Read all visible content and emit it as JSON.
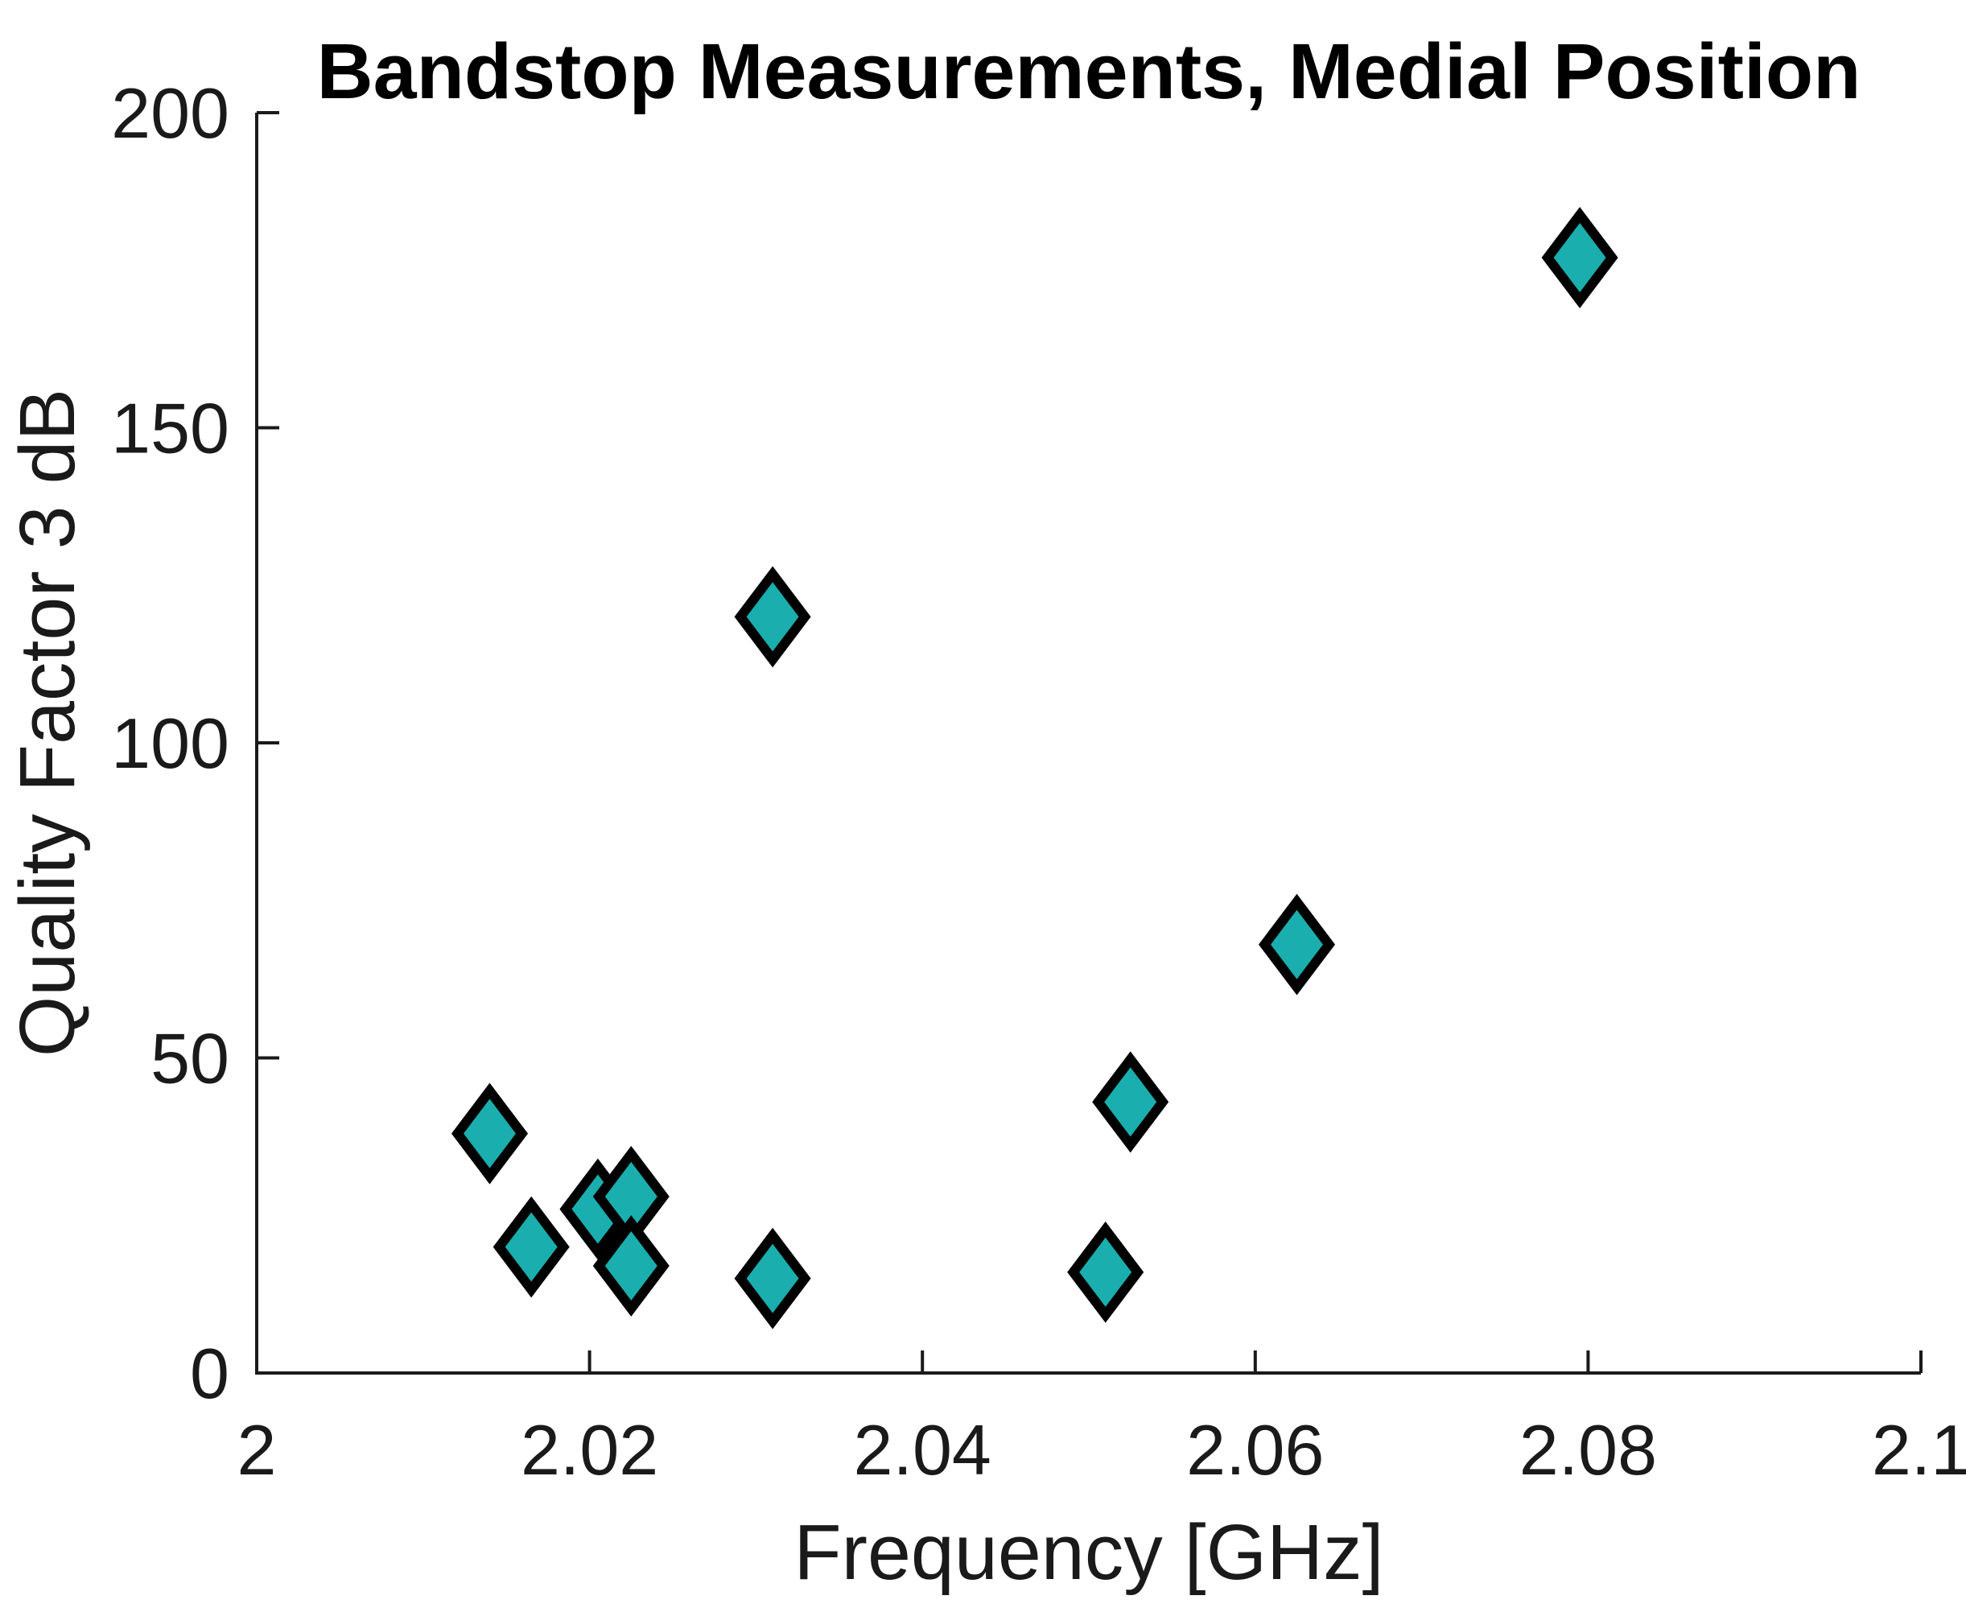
{
  "figure": {
    "background": "#ffffff"
  },
  "chart_data": {
    "type": "scatter",
    "title": "Bandstop Measurements, Medial Position",
    "xlabel": "Frequency [GHz]",
    "ylabel": "Quality Factor 3 dB",
    "xlim": [
      2.0,
      2.1
    ],
    "ylim": [
      0,
      200
    ],
    "xticks": [
      2,
      2.02,
      2.04,
      2.06,
      2.08,
      2.1
    ],
    "xtick_labels": [
      "2",
      "2.02",
      "2.04",
      "2.06",
      "2.08",
      "2.1"
    ],
    "yticks": [
      0,
      50,
      100,
      150,
      200
    ],
    "ytick_labels": [
      "0",
      "50",
      "100",
      "150",
      "200"
    ],
    "grid": false,
    "legend": false,
    "box": false,
    "tick_direction": "in",
    "axis_color": "#1a1a1a",
    "marker": {
      "shape": "diamond",
      "fill": "#1AAEAE",
      "edge": "#000000"
    },
    "points": [
      {
        "x": 2.014,
        "y": 38
      },
      {
        "x": 2.0165,
        "y": 20
      },
      {
        "x": 2.0205,
        "y": 26
      },
      {
        "x": 2.0225,
        "y": 28
      },
      {
        "x": 2.0225,
        "y": 17
      },
      {
        "x": 2.031,
        "y": 15
      },
      {
        "x": 2.031,
        "y": 120
      },
      {
        "x": 2.051,
        "y": 16
      },
      {
        "x": 2.0525,
        "y": 43
      },
      {
        "x": 2.0625,
        "y": 68
      },
      {
        "x": 2.0795,
        "y": 177
      }
    ]
  }
}
